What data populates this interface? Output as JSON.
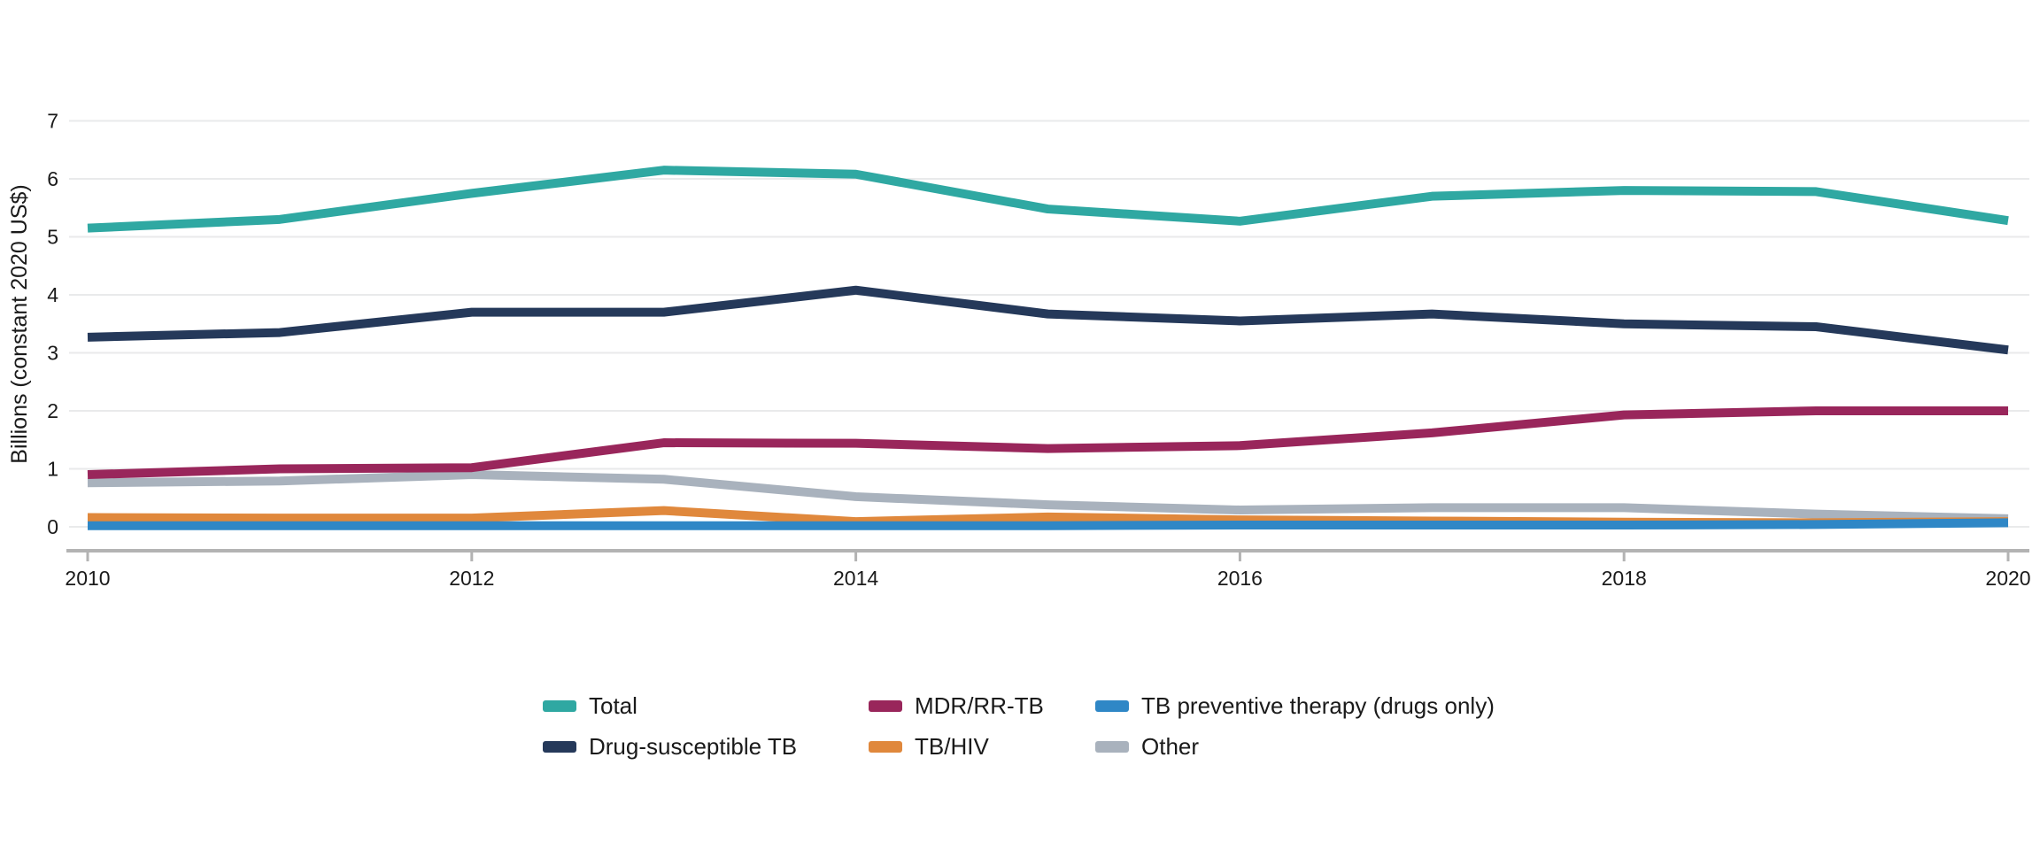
{
  "chart_data": {
    "type": "line",
    "title": "",
    "xlabel": "",
    "ylabel": "Billions (constant 2020 US$)",
    "ylim": [
      0,
      7
    ],
    "y_ticks": [
      0,
      1,
      2,
      3,
      4,
      5,
      6,
      7
    ],
    "x_tick_labels": [
      "2010",
      "2012",
      "2014",
      "2016",
      "2018",
      "2020"
    ],
    "x_tick_years": [
      2010,
      2012,
      2014,
      2016,
      2018,
      2020
    ],
    "grid": true,
    "legend_position": "bottom",
    "x": [
      2010,
      2011,
      2012,
      2013,
      2014,
      2015,
      2016,
      2017,
      2018,
      2019,
      2020
    ],
    "series": [
      {
        "name": "Total",
        "color": "#2FA8A2",
        "values": [
          5.15,
          5.3,
          5.75,
          6.15,
          6.08,
          5.48,
          5.27,
          5.7,
          5.8,
          5.78,
          5.28
        ]
      },
      {
        "name": "Drug-susceptible TB",
        "color": "#25395A",
        "values": [
          3.27,
          3.35,
          3.7,
          3.7,
          4.08,
          3.67,
          3.55,
          3.67,
          3.5,
          3.45,
          3.05
        ]
      },
      {
        "name": "MDR/RR-TB",
        "color": "#99265B",
        "values": [
          0.9,
          1.0,
          1.02,
          1.45,
          1.44,
          1.35,
          1.4,
          1.62,
          1.93,
          2.0,
          2.0
        ]
      },
      {
        "name": "TB/HIV",
        "color": "#E0883C",
        "values": [
          0.16,
          0.15,
          0.15,
          0.28,
          0.09,
          0.17,
          0.12,
          0.1,
          0.08,
          0.07,
          0.09
        ]
      },
      {
        "name": "TB preventive therapy (drugs only)",
        "color": "#2F87C6",
        "values": [
          0.02,
          0.02,
          0.02,
          0.02,
          0.02,
          0.02,
          0.03,
          0.03,
          0.03,
          0.04,
          0.07
        ]
      },
      {
        "name": "Other",
        "color": "#A9B2BD",
        "values": [
          0.76,
          0.79,
          0.9,
          0.82,
          0.52,
          0.38,
          0.29,
          0.33,
          0.33,
          0.22,
          0.14
        ]
      }
    ],
    "draw_order": [
      "Other",
      "TB/HIV",
      "TB preventive therapy (drugs only)",
      "MDR/RR-TB",
      "Drug-susceptible TB",
      "Total"
    ]
  },
  "legend": {
    "entries": [
      {
        "label": "Total",
        "row": 0,
        "col": 0
      },
      {
        "label": "MDR/RR-TB",
        "row": 0,
        "col": 1
      },
      {
        "label": "TB preventive therapy (drugs only)",
        "row": 0,
        "col": 2
      },
      {
        "label": "Drug-susceptible TB",
        "row": 1,
        "col": 0
      },
      {
        "label": "TB/HIV",
        "row": 1,
        "col": 1
      },
      {
        "label": "Other",
        "row": 1,
        "col": 2
      }
    ]
  },
  "ui_colors": {
    "background": "#ffffff",
    "gridline": "#E9EAEB",
    "axis_line": "#B3B3B3",
    "tick_mark": "#B3B3B3",
    "text": "#1A1A1A"
  }
}
